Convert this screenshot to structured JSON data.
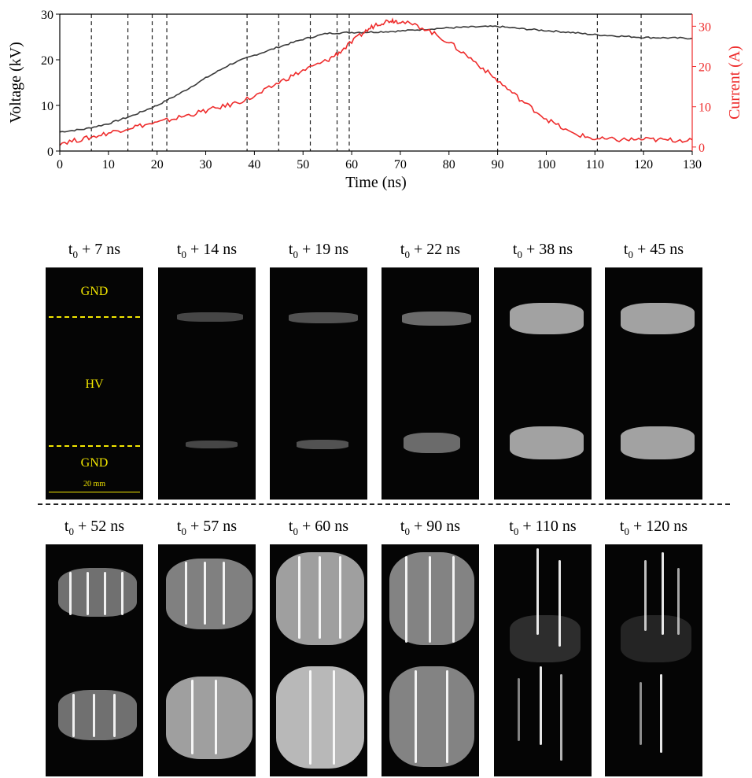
{
  "chart_data": {
    "type": "line",
    "xlabel": "Time (ns)",
    "ylabel_left": "Voltage (kV)",
    "ylabel_right": "Current (A)",
    "xlim": [
      0,
      130
    ],
    "ylim_left": [
      0,
      30
    ],
    "ylim_right": [
      -1,
      33
    ],
    "x_ticks": [
      "0",
      "10",
      "20",
      "30",
      "40",
      "50",
      "60",
      "70",
      "80",
      "90",
      "100",
      "110",
      "120",
      "130"
    ],
    "y_left_ticks": [
      "0",
      "10",
      "20",
      "30"
    ],
    "y_right_ticks": [
      "0",
      "10",
      "20",
      "30"
    ],
    "series": [
      {
        "axis": "left",
        "color": "#3a3a3a",
        "x": [
          0,
          5,
          10,
          15,
          20,
          25,
          30,
          35,
          40,
          45,
          50,
          55,
          60,
          65,
          70,
          75,
          80,
          85,
          90,
          95,
          100,
          105,
          110,
          115,
          120,
          125,
          130
        ],
        "y": [
          4.2,
          4.8,
          6.0,
          7.8,
          10.0,
          12.8,
          16.0,
          19.0,
          21.0,
          22.8,
          24.5,
          25.8,
          26.0,
          26.1,
          26.3,
          26.7,
          27.0,
          27.2,
          27.3,
          26.8,
          26.4,
          26.0,
          25.5,
          25.2,
          24.9,
          24.8,
          24.7
        ]
      },
      {
        "axis": "right",
        "color": "#ee2b2b",
        "x": [
          0,
          5,
          10,
          15,
          20,
          25,
          30,
          35,
          40,
          45,
          50,
          55,
          58,
          62,
          65,
          68,
          70,
          75,
          80,
          85,
          90,
          95,
          100,
          105,
          110,
          115,
          120,
          125,
          130
        ],
        "y": [
          1.0,
          2.0,
          3.5,
          5.0,
          6.0,
          7.5,
          9.0,
          10.5,
          12.5,
          16.0,
          19.0,
          21.5,
          24.0,
          28.0,
          30.5,
          31.5,
          31.2,
          29.5,
          26.0,
          21.5,
          16.5,
          11.5,
          7.0,
          3.5,
          2.0,
          1.8,
          1.9,
          1.7,
          1.8
        ]
      }
    ],
    "vlines": [
      6.5,
      14,
      19,
      22,
      38.5,
      45,
      51.5,
      57,
      59.5,
      90,
      110.5,
      119.5
    ]
  },
  "frames": {
    "row1": [
      "7",
      "14",
      "19",
      "22",
      "38",
      "45"
    ],
    "row2": [
      "52",
      "57",
      "60",
      "90",
      "110",
      "120"
    ],
    "prefix": "t",
    "subscript": "0",
    "unit": "ns"
  },
  "annotations": {
    "gnd_top": "GND",
    "hv": "HV",
    "gnd_bottom": "GND",
    "scale": "20 mm"
  }
}
